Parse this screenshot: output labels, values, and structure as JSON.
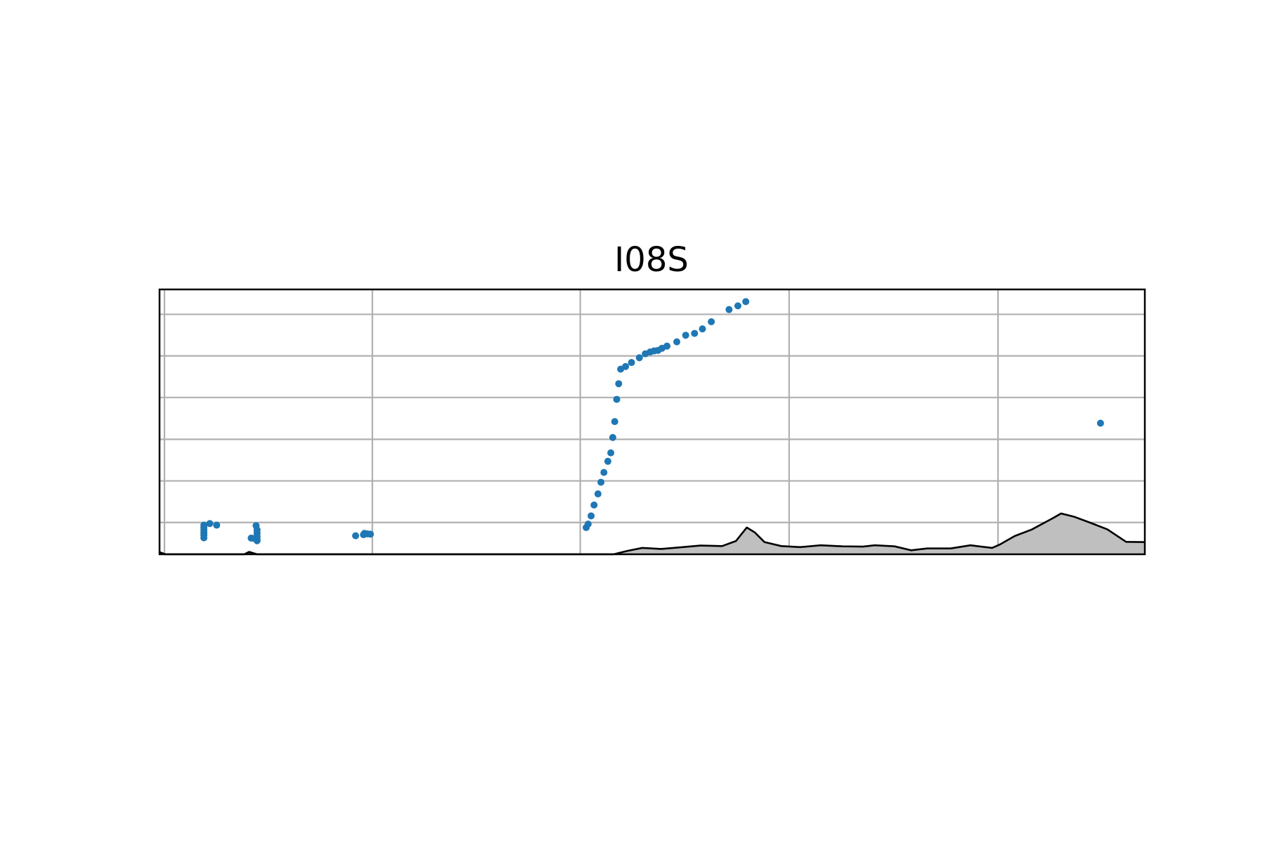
{
  "chart_data": {
    "type": "scatter",
    "title": "I08S",
    "xlabel": "",
    "ylabel": "",
    "xlim": [
      0,
      100
    ],
    "ylim": [
      0,
      100
    ],
    "grid": true,
    "x_gridlines": [
      0.5,
      21.6,
      42.7,
      63.9,
      85.1
    ],
    "y_gridlines": [
      12.0,
      27.7,
      43.4,
      59.2,
      74.9,
      90.6
    ],
    "series": [
      {
        "color": "#1f77b4",
        "points": [
          [
            4.5,
            11.0
          ],
          [
            4.5,
            10.2
          ],
          [
            4.5,
            9.2
          ],
          [
            4.5,
            8.2
          ],
          [
            4.5,
            7.3
          ],
          [
            4.5,
            6.2
          ],
          [
            5.1,
            11.6
          ],
          [
            5.8,
            11.0
          ],
          [
            9.3,
            6.1
          ],
          [
            9.6,
            6.0
          ],
          [
            9.9,
            5.6
          ],
          [
            9.9,
            5.1
          ],
          [
            9.9,
            6.7
          ],
          [
            9.9,
            8.0
          ],
          [
            9.9,
            9.2
          ],
          [
            9.8,
            10.8
          ],
          [
            19.9,
            7.0
          ],
          [
            20.7,
            7.4
          ],
          [
            20.8,
            7.9
          ],
          [
            21.1,
            7.7
          ],
          [
            21.4,
            7.6
          ],
          [
            43.3,
            10.1
          ],
          [
            43.5,
            11.4
          ],
          [
            43.8,
            14.5
          ],
          [
            44.1,
            18.6
          ],
          [
            44.5,
            22.8
          ],
          [
            44.8,
            27.2
          ],
          [
            45.1,
            30.9
          ],
          [
            45.5,
            35.1
          ],
          [
            45.8,
            38.3
          ],
          [
            46.0,
            44.1
          ],
          [
            46.2,
            50.1
          ],
          [
            46.4,
            58.5
          ],
          [
            46.6,
            64.4
          ],
          [
            46.8,
            69.9
          ],
          [
            47.3,
            70.9
          ],
          [
            47.9,
            72.4
          ],
          [
            48.7,
            74.2
          ],
          [
            49.3,
            75.7
          ],
          [
            49.8,
            76.4
          ],
          [
            50.2,
            76.8
          ],
          [
            50.6,
            77.0
          ],
          [
            51.0,
            77.8
          ],
          [
            51.5,
            78.6
          ],
          [
            52.5,
            80.2
          ],
          [
            53.4,
            82.7
          ],
          [
            54.3,
            83.4
          ],
          [
            55.1,
            85.1
          ],
          [
            56.0,
            87.8
          ],
          [
            57.8,
            92.4
          ],
          [
            58.7,
            93.8
          ],
          [
            59.5,
            95.4
          ],
          [
            95.5,
            49.5
          ]
        ]
      }
    ],
    "area": {
      "fill": "#bfbfbf",
      "stroke": "#000000",
      "points": [
        [
          0,
          0.8
        ],
        [
          0.6,
          0
        ],
        [
          8.6,
          0
        ],
        [
          9.1,
          0.9
        ],
        [
          9.9,
          0
        ],
        [
          46.1,
          0
        ],
        [
          47.5,
          1.3
        ],
        [
          49.0,
          2.4
        ],
        [
          50.9,
          2.0
        ],
        [
          52.8,
          2.6
        ],
        [
          54.9,
          3.3
        ],
        [
          57.1,
          3.1
        ],
        [
          58.5,
          5.0
        ],
        [
          59.6,
          10.1
        ],
        [
          60.4,
          8.3
        ],
        [
          61.4,
          4.6
        ],
        [
          63.1,
          3.1
        ],
        [
          65.0,
          2.7
        ],
        [
          67.1,
          3.4
        ],
        [
          69.3,
          3.0
        ],
        [
          71.4,
          2.9
        ],
        [
          72.6,
          3.4
        ],
        [
          74.6,
          3.0
        ],
        [
          76.3,
          1.5
        ],
        [
          77.9,
          2.2
        ],
        [
          80.3,
          2.2
        ],
        [
          82.3,
          3.4
        ],
        [
          84.5,
          2.4
        ],
        [
          85.3,
          3.7
        ],
        [
          86.8,
          6.9
        ],
        [
          88.5,
          9.3
        ],
        [
          90.6,
          13.5
        ],
        [
          91.5,
          15.4
        ],
        [
          92.8,
          14.2
        ],
        [
          94.4,
          12.0
        ],
        [
          96.2,
          9.4
        ],
        [
          98.1,
          4.7
        ],
        [
          100,
          4.6
        ]
      ]
    }
  }
}
